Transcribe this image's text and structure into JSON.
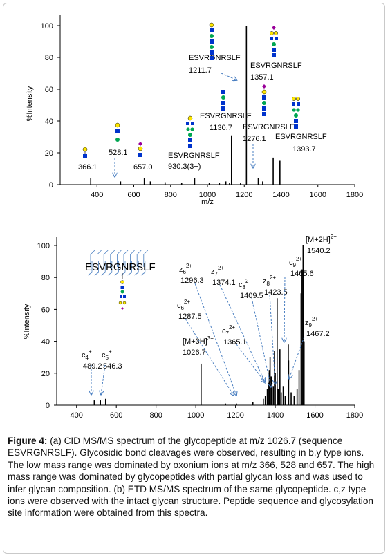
{
  "chart_data": [
    {
      "type": "bar",
      "ylabel": "%Intensity",
      "xlabel": "m/z",
      "xlim": [
        200,
        1800
      ],
      "ylim": [
        0,
        100
      ],
      "xticks": [
        "400",
        "600",
        "800",
        "1000",
        "1200",
        "1400",
        "1600",
        "1800"
      ],
      "yticks": [
        "0",
        "20",
        "40",
        "60",
        "80",
        "100"
      ],
      "peaks": [
        {
          "x": 366.1,
          "y": 4
        },
        {
          "x": 528.1,
          "y": 2
        },
        {
          "x": 657.0,
          "y": 4
        },
        {
          "x": 690,
          "y": 2
        },
        {
          "x": 770,
          "y": 1.5
        },
        {
          "x": 860,
          "y": 1
        },
        {
          "x": 930.3,
          "y": 4
        },
        {
          "x": 1010,
          "y": 1
        },
        {
          "x": 1065,
          "y": 1
        },
        {
          "x": 1100,
          "y": 2
        },
        {
          "x": 1120,
          "y": 1
        },
        {
          "x": 1130.7,
          "y": 31
        },
        {
          "x": 1180,
          "y": 1
        },
        {
          "x": 1211.7,
          "y": 100
        },
        {
          "x": 1276.1,
          "y": 4
        },
        {
          "x": 1300,
          "y": 2
        },
        {
          "x": 1357.1,
          "y": 17
        },
        {
          "x": 1393.7,
          "y": 15
        }
      ],
      "labels": [
        {
          "id": "p366",
          "mz": "366.1"
        },
        {
          "id": "p528",
          "mz": "528.1"
        },
        {
          "id": "p657",
          "mz": "657.0"
        },
        {
          "id": "p930",
          "name": "ESVRGNRSLF",
          "mz": "930.3(3+)"
        },
        {
          "id": "p1130",
          "name": "ESVRGNRSLF",
          "mz": "1130.7"
        },
        {
          "id": "p1211",
          "name": "ESVRGNRSLF",
          "mz": "1211.7"
        },
        {
          "id": "p1357",
          "name": "ESVRGNRSLF",
          "mz": "1357.1"
        },
        {
          "id": "p1276",
          "name": "ESVRGNRSLF",
          "mz": "1276.1"
        },
        {
          "id": "p1393",
          "name": "ESVRGNRSLF",
          "mz": "1393.7"
        }
      ]
    },
    {
      "type": "bar",
      "ylabel": "%Intensity",
      "xlim": [
        300,
        1800
      ],
      "ylim": [
        0,
        100
      ],
      "xticks": [
        "400",
        "600",
        "800",
        "1000",
        "1200",
        "1400",
        "1600",
        "1800"
      ],
      "yticks": [
        "0",
        "20",
        "40",
        "60",
        "80",
        "100"
      ],
      "sequence": "ESVRGNRSLF",
      "peaks": [
        {
          "x": 489.2,
          "y": 3
        },
        {
          "x": 520,
          "y": 3
        },
        {
          "x": 546.3,
          "y": 4
        },
        {
          "x": 1026.7,
          "y": 26
        },
        {
          "x": 1150,
          "y": 1
        },
        {
          "x": 1205,
          "y": 1
        },
        {
          "x": 1287.5,
          "y": 2
        },
        {
          "x": 1340,
          "y": 4
        },
        {
          "x": 1350,
          "y": 6
        },
        {
          "x": 1360,
          "y": 10
        },
        {
          "x": 1365.1,
          "y": 14
        },
        {
          "x": 1370,
          "y": 22
        },
        {
          "x": 1374.1,
          "y": 30
        },
        {
          "x": 1380,
          "y": 18
        },
        {
          "x": 1390,
          "y": 12
        },
        {
          "x": 1396.3,
          "y": 34
        },
        {
          "x": 1400,
          "y": 20
        },
        {
          "x": 1409.5,
          "y": 67
        },
        {
          "x": 1415,
          "y": 10
        },
        {
          "x": 1423.5,
          "y": 35
        },
        {
          "x": 1430,
          "y": 8
        },
        {
          "x": 1440,
          "y": 12
        },
        {
          "x": 1450,
          "y": 6
        },
        {
          "x": 1465.6,
          "y": 38
        },
        {
          "x": 1467.2,
          "y": 28
        },
        {
          "x": 1480,
          "y": 8
        },
        {
          "x": 1495,
          "y": 6
        },
        {
          "x": 1510,
          "y": 10
        },
        {
          "x": 1520,
          "y": 22
        },
        {
          "x": 1530,
          "y": 70
        },
        {
          "x": 1535,
          "y": 85
        },
        {
          "x": 1540.2,
          "y": 100
        },
        {
          "x": 1545,
          "y": 40
        }
      ],
      "labels": [
        {
          "id": "c4",
          "ion": "c",
          "sub": "4",
          "sup": "+",
          "mz": "489.2"
        },
        {
          "id": "c5",
          "ion": "c",
          "sub": "5",
          "sup": "+",
          "mz": "546.3"
        },
        {
          "id": "m3h",
          "ion": "[M+3H]",
          "sub": "",
          "sup": "3+",
          "mz": "1026.7"
        },
        {
          "id": "c6",
          "ion": "c",
          "sub": "6",
          "sup": "2+",
          "mz": "1287.5"
        },
        {
          "id": "z6",
          "ion": "z",
          "sub": "6",
          "sup": "2+",
          "mz": "1296.3"
        },
        {
          "id": "z7",
          "ion": "z",
          "sub": "7",
          "sup": "2+",
          "mz": "1374.1"
        },
        {
          "id": "c7",
          "ion": "c",
          "sub": "7",
          "sup": "2+",
          "mz": "1365.1"
        },
        {
          "id": "c8",
          "ion": "c",
          "sub": "8",
          "sup": "2+",
          "mz": "1409.5"
        },
        {
          "id": "z8",
          "ion": "z",
          "sub": "8",
          "sup": "2+",
          "mz": "1423.5"
        },
        {
          "id": "c9",
          "ion": "c",
          "sub": "9",
          "sup": "2+",
          "mz": "1465.6"
        },
        {
          "id": "m2h",
          "ion": "[M+2H]",
          "sub": "",
          "sup": "2+",
          "mz": "1540.2"
        },
        {
          "id": "z9",
          "ion": "z",
          "sub": "9",
          "sup": "2+",
          "mz": "1467.2"
        }
      ]
    }
  ],
  "caption": {
    "lead": "Figure 4:",
    "body": "(a) CID MS/MS spectrum of the glycopeptide at m/z 1026.7 (sequence ESVRGNRSLF). Glycosidic bond cleavages were observed, resulting in b,y type ions. The low mass range was dominated by oxonium ions at m/z 366, 528 and 657. The high mass range was dominated by glycopeptides with partial glycan loss and was used to infer glycan composition. (b) ETD MS/MS spectrum of the same glycopeptide. c,z type ions were observed with the intact glycan structure. Peptide sequence and glycosylation site information were obtained from this spectra."
  },
  "colors": {
    "galactose": "#ffe800",
    "mannose": "#00a651",
    "glcnac": "#0033cc",
    "fucose": "#d40000",
    "neuac": "#990099",
    "arrow": "#4a7fc1"
  }
}
